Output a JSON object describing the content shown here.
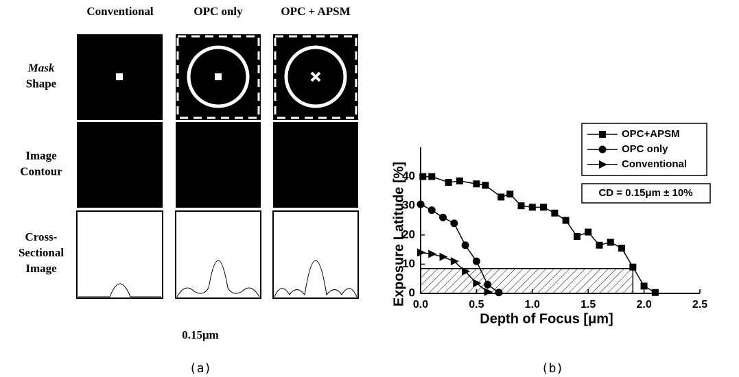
{
  "panel_a": {
    "columns": [
      "Conventional",
      "OPC only",
      "OPC + APSM"
    ],
    "rows": [
      [
        "Mask",
        "Shape"
      ],
      [
        "Image",
        "Contour"
      ],
      [
        "Cross-",
        "Sectional",
        "Image"
      ]
    ],
    "scale_label": "0.15μm",
    "caption": "(a)"
  },
  "chart_data": {
    "type": "line",
    "caption": "(b)",
    "x_label": "Depth of Focus [μm]",
    "y_label": "Exposure Latitude [%]",
    "annotation": "CD = 0.15μm ± 10%",
    "xlim": [
      0,
      2.5
    ],
    "ylim": [
      0,
      50
    ],
    "xticks": [
      {
        "value": 0,
        "label": "0.0"
      },
      0.5,
      {
        "value": 1,
        "label": "1.0"
      },
      1.5,
      {
        "value": 2,
        "label": "2.0"
      },
      2.5
    ],
    "yticks": [
      0,
      10,
      20,
      30,
      40
    ],
    "legend": "upper right",
    "shaded_region": {
      "x": [
        0,
        1.9
      ],
      "y": [
        0,
        8.5
      ]
    },
    "series": [
      {
        "name": "OPC+APSM",
        "color": "#000000",
        "marker": "square",
        "x": [
          0.02,
          0.1,
          0.25,
          0.35,
          0.5,
          0.58,
          0.72,
          0.8,
          0.9,
          1.0,
          1.1,
          1.2,
          1.3,
          1.4,
          1.5,
          1.6,
          1.7,
          1.8,
          1.9,
          2.0,
          2.1
        ],
        "values": [
          40,
          40,
          38,
          38.5,
          37.5,
          37,
          33,
          34,
          30,
          29.5,
          29.5,
          27.5,
          25,
          19.5,
          21,
          16.5,
          17.5,
          15.5,
          9,
          2.5,
          0.3
        ]
      },
      {
        "name": "OPC only",
        "color": "#000000",
        "marker": "circle",
        "x": [
          0,
          0.1,
          0.2,
          0.3,
          0.4,
          0.5,
          0.6,
          0.7
        ],
        "values": [
          30.5,
          28.5,
          26,
          24,
          16.5,
          11,
          3,
          0.3
        ]
      },
      {
        "name": "Conventional",
        "color": "#000000",
        "marker": "triangle",
        "x": [
          0,
          0.1,
          0.2,
          0.3,
          0.4,
          0.5,
          0.6
        ],
        "values": [
          14,
          13.5,
          12.5,
          11,
          7.5,
          3.5,
          0.5
        ]
      }
    ]
  }
}
